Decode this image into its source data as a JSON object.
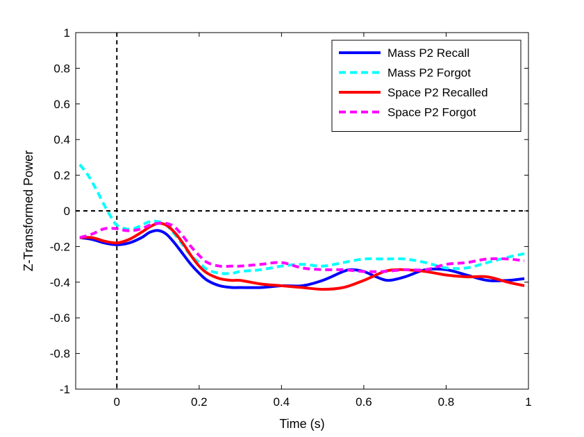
{
  "chart_data": {
    "type": "line",
    "xlabel": "Time (s)",
    "ylabel": "Z-Transformed Power",
    "xlim": [
      -0.1,
      1
    ],
    "ylim": [
      -1,
      1
    ],
    "xticks": [
      0,
      0.2,
      0.4,
      0.6,
      0.8,
      1
    ],
    "xtick_labels": [
      "0",
      "0.2",
      "0.4",
      "0.6",
      "0.8",
      "1"
    ],
    "yticks": [
      -1,
      -0.8,
      -0.6,
      -0.4,
      -0.2,
      0,
      0.2,
      0.4,
      0.6,
      0.8,
      1
    ],
    "ytick_labels": [
      "-1",
      "-0.8",
      "-0.6",
      "-0.4",
      "-0.2",
      "0",
      "0.2",
      "0.4",
      "0.6",
      "0.8",
      "1"
    ],
    "grid": false,
    "legend_position": "top-right",
    "reference_lines": [
      {
        "orientation": "horizontal",
        "value": 0,
        "style": "dashed",
        "color": "#000000"
      },
      {
        "orientation": "vertical",
        "value": 0,
        "style": "dashed",
        "color": "#000000"
      }
    ],
    "series": [
      {
        "name": "Mass P2 Recall",
        "color": "#0000ff",
        "style": "solid",
        "x": [
          -0.09,
          -0.06,
          -0.03,
          0.0,
          0.03,
          0.06,
          0.08,
          0.1,
          0.12,
          0.14,
          0.16,
          0.18,
          0.2,
          0.22,
          0.25,
          0.28,
          0.3,
          0.35,
          0.4,
          0.45,
          0.5,
          0.55,
          0.57,
          0.6,
          0.63,
          0.66,
          0.7,
          0.75,
          0.8,
          0.85,
          0.9,
          0.95,
          0.99
        ],
        "y": [
          -0.15,
          -0.16,
          -0.18,
          -0.19,
          -0.18,
          -0.15,
          -0.12,
          -0.11,
          -0.13,
          -0.18,
          -0.24,
          -0.3,
          -0.35,
          -0.39,
          -0.42,
          -0.43,
          -0.43,
          -0.43,
          -0.42,
          -0.42,
          -0.39,
          -0.34,
          -0.33,
          -0.34,
          -0.37,
          -0.39,
          -0.37,
          -0.33,
          -0.33,
          -0.36,
          -0.39,
          -0.39,
          -0.38
        ]
      },
      {
        "name": "Mass P2 Forgot",
        "color": "#00ffff",
        "style": "dashed",
        "x": [
          -0.09,
          -0.07,
          -0.05,
          -0.03,
          -0.01,
          0.0,
          0.02,
          0.04,
          0.06,
          0.08,
          0.1,
          0.12,
          0.14,
          0.16,
          0.18,
          0.2,
          0.22,
          0.25,
          0.28,
          0.3,
          0.35,
          0.4,
          0.45,
          0.5,
          0.55,
          0.6,
          0.65,
          0.7,
          0.75,
          0.8,
          0.85,
          0.9,
          0.95,
          0.99
        ],
        "y": [
          0.26,
          0.2,
          0.12,
          0.03,
          -0.05,
          -0.08,
          -0.1,
          -0.1,
          -0.08,
          -0.06,
          -0.06,
          -0.08,
          -0.13,
          -0.19,
          -0.25,
          -0.29,
          -0.33,
          -0.35,
          -0.35,
          -0.34,
          -0.33,
          -0.31,
          -0.3,
          -0.31,
          -0.29,
          -0.27,
          -0.27,
          -0.27,
          -0.29,
          -0.32,
          -0.32,
          -0.29,
          -0.26,
          -0.24
        ]
      },
      {
        "name": "Space P2 Recalled",
        "color": "#ff0000",
        "style": "solid",
        "x": [
          -0.09,
          -0.06,
          -0.03,
          0.0,
          0.03,
          0.06,
          0.08,
          0.1,
          0.12,
          0.14,
          0.16,
          0.18,
          0.2,
          0.22,
          0.25,
          0.28,
          0.3,
          0.35,
          0.4,
          0.45,
          0.5,
          0.55,
          0.6,
          0.65,
          0.68,
          0.7,
          0.75,
          0.8,
          0.85,
          0.9,
          0.95,
          0.99
        ],
        "y": [
          -0.15,
          -0.15,
          -0.17,
          -0.18,
          -0.16,
          -0.12,
          -0.09,
          -0.07,
          -0.08,
          -0.12,
          -0.18,
          -0.25,
          -0.31,
          -0.35,
          -0.38,
          -0.39,
          -0.39,
          -0.41,
          -0.42,
          -0.43,
          -0.44,
          -0.43,
          -0.39,
          -0.34,
          -0.33,
          -0.33,
          -0.34,
          -0.36,
          -0.37,
          -0.37,
          -0.4,
          -0.42
        ]
      },
      {
        "name": "Space P2 Forgot",
        "color": "#ff00ff",
        "style": "dashed",
        "x": [
          -0.09,
          -0.06,
          -0.03,
          0.0,
          0.02,
          0.04,
          0.06,
          0.08,
          0.1,
          0.12,
          0.14,
          0.16,
          0.18,
          0.2,
          0.22,
          0.25,
          0.28,
          0.3,
          0.35,
          0.4,
          0.45,
          0.5,
          0.55,
          0.6,
          0.65,
          0.7,
          0.75,
          0.8,
          0.85,
          0.9,
          0.95,
          0.99
        ],
        "y": [
          -0.15,
          -0.13,
          -0.1,
          -0.1,
          -0.11,
          -0.11,
          -0.1,
          -0.08,
          -0.07,
          -0.07,
          -0.09,
          -0.14,
          -0.2,
          -0.25,
          -0.29,
          -0.31,
          -0.31,
          -0.31,
          -0.3,
          -0.29,
          -0.32,
          -0.33,
          -0.33,
          -0.34,
          -0.34,
          -0.33,
          -0.33,
          -0.3,
          -0.29,
          -0.27,
          -0.27,
          -0.28
        ]
      }
    ]
  }
}
